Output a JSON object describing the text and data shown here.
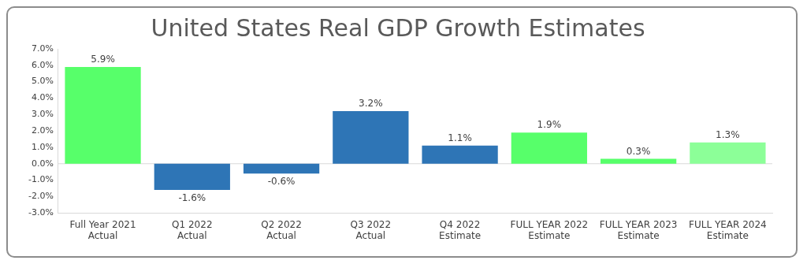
{
  "chart_data": {
    "type": "bar",
    "title": "United States Real GDP Growth Estimates",
    "categories": [
      "Full Year 2021\nActual",
      "Q1 2022\nActual",
      "Q2 2022\nActual",
      "Q3 2022\nActual",
      "Q4 2022\nEstimate",
      "FULL YEAR 2022\nEstimate",
      "FULL YEAR 2023\nEstimate",
      "FULL YEAR 2024\nEstimate"
    ],
    "values": [
      5.9,
      -1.6,
      -0.6,
      3.2,
      1.1,
      1.9,
      0.3,
      1.3
    ],
    "colors": [
      "#57ff6a",
      "#2e75b6",
      "#2e75b6",
      "#2e75b6",
      "#2e75b6",
      "#57ff6a",
      "#57ff6a",
      "#8cff98"
    ],
    "value_labels": [
      "5.9%",
      "-1.6%",
      "-0.6%",
      "3.2%",
      "1.1%",
      "1.9%",
      "0.3%",
      "1.3%"
    ],
    "ylim": [
      -3,
      7
    ],
    "yticks": [
      {
        "value": -3,
        "label": "-3.0%"
      },
      {
        "value": -2,
        "label": "-2.0%"
      },
      {
        "value": -1,
        "label": "-1.0%"
      },
      {
        "value": 0,
        "label": "0.0%"
      },
      {
        "value": 1,
        "label": "1.0%"
      },
      {
        "value": 2,
        "label": "2.0%"
      },
      {
        "value": 3,
        "label": "3.0%"
      },
      {
        "value": 4,
        "label": "4.0%"
      },
      {
        "value": 5,
        "label": "5.0%"
      },
      {
        "value": 6,
        "label": "6.0%"
      },
      {
        "value": 7,
        "label": "7.0%"
      }
    ],
    "ref_lines": [
      {
        "axis": "y",
        "value": 0,
        "color": "#d9d9d9"
      }
    ],
    "grid": false,
    "legend": false
  }
}
